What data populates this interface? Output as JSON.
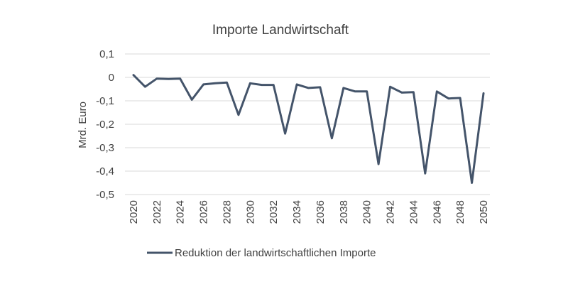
{
  "chart_data": {
    "type": "line",
    "title": "Importe Landwirtschaft",
    "xlabel": "",
    "ylabel": "Mrd. Euro",
    "ylim": [
      -0.5,
      0.1
    ],
    "yticks": [
      0.1,
      0,
      -0.1,
      -0.2,
      -0.3,
      -0.4,
      -0.5
    ],
    "ytick_labels": [
      "0,1",
      "0",
      "-0,1",
      "-0,2",
      "-0,3",
      "-0,4",
      "-0,5"
    ],
    "xlim": [
      2020,
      2050
    ],
    "xtick_labels": [
      "2020",
      "2022",
      "2024",
      "2026",
      "2028",
      "2030",
      "2032",
      "2034",
      "2036",
      "2038",
      "2040",
      "2042",
      "2044",
      "2046",
      "2048",
      "2050"
    ],
    "grid": true,
    "legend_position": "bottom",
    "series": [
      {
        "name": "Reduktion der landwirtschaftlichen Importe",
        "color": "#44546a",
        "x": [
          2020,
          2021,
          2022,
          2023,
          2024,
          2025,
          2026,
          2027,
          2028,
          2029,
          2030,
          2031,
          2032,
          2033,
          2034,
          2035,
          2036,
          2037,
          2038,
          2039,
          2040,
          2041,
          2042,
          2043,
          2044,
          2045,
          2046,
          2047,
          2048,
          2049,
          2050
        ],
        "values": [
          0.01,
          -0.04,
          -0.005,
          -0.007,
          -0.005,
          -0.095,
          -0.03,
          -0.025,
          -0.022,
          -0.16,
          -0.025,
          -0.032,
          -0.032,
          -0.24,
          -0.03,
          -0.045,
          -0.042,
          -0.26,
          -0.045,
          -0.06,
          -0.06,
          -0.37,
          -0.04,
          -0.065,
          -0.063,
          -0.41,
          -0.06,
          -0.09,
          -0.088,
          -0.45,
          -0.068
        ]
      }
    ]
  }
}
